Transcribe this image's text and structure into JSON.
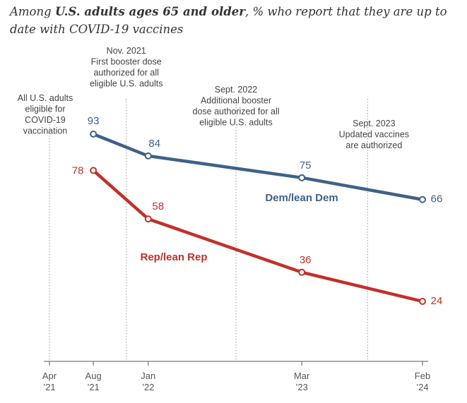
{
  "title": {
    "prefix": "Among ",
    "bold": "U.S. adults ages 65 and older",
    "suffix": ", % who report that they are up to date with COVID-19 vaccines"
  },
  "colors": {
    "dem": "#3f6189",
    "rep": "#c0312a",
    "axis": "#777777",
    "vline": "#999999"
  },
  "chart_data": {
    "type": "line",
    "x_ticks": [
      {
        "date": "2021-04",
        "label": [
          "Apr",
          "’21"
        ]
      },
      {
        "date": "2021-08",
        "label": [
          "Aug",
          "’21"
        ]
      },
      {
        "date": "2022-01",
        "label": [
          "Jan",
          "’22"
        ]
      },
      {
        "date": "2023-03",
        "label": [
          "Mar",
          "’23"
        ]
      },
      {
        "date": "2024-02",
        "label": [
          "Feb",
          "’24"
        ]
      }
    ],
    "series": [
      {
        "name": "Dem/lean Dem",
        "color_key": "dem",
        "points": [
          {
            "date": "2021-08",
            "value": 93
          },
          {
            "date": "2022-01",
            "value": 84
          },
          {
            "date": "2023-03",
            "value": 75
          },
          {
            "date": "2024-02",
            "value": 66
          }
        ]
      },
      {
        "name": "Rep/lean Rep",
        "color_key": "rep",
        "points": [
          {
            "date": "2021-08",
            "value": 78
          },
          {
            "date": "2022-01",
            "value": 58
          },
          {
            "date": "2023-03",
            "value": 36
          },
          {
            "date": "2024-02",
            "value": 24
          }
        ]
      }
    ],
    "annotations": [
      {
        "date": "2021-04",
        "lines": [
          "All U.S. adults",
          "eligible for",
          "COVID-19",
          "vaccination"
        ]
      },
      {
        "date": "2021-11",
        "lines": [
          "Nov. 2021",
          "First booster dose",
          "authorized for all",
          "eligible U.S. adults"
        ]
      },
      {
        "date": "2022-09",
        "lines": [
          "Sept. 2022",
          "Additional booster",
          "dose authorized for all",
          "eligible U.S. adults"
        ]
      },
      {
        "date": "2023-09",
        "lines": [
          "Sept. 2023",
          "Updated vaccines",
          "are authorized"
        ]
      }
    ]
  }
}
